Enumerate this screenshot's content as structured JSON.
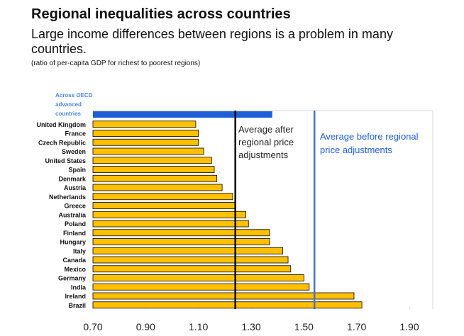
{
  "header": {
    "title": "Regional inequalities across countries",
    "subtitle": "Large income differences between regions is a problem in many countries.",
    "note": "(ratio of per-capita GDP for richest to poorest regions)"
  },
  "colors": {
    "bar_fill": "#ffc000",
    "bar_stroke": "#000000",
    "oecd_bar": "#1f5fd6",
    "oecd_label": "#4a86e8",
    "after_line": "#000000",
    "before_line": "#4472c4",
    "before_text": "#1f5fd6",
    "grid": "#d9d9d9"
  },
  "chart_data": {
    "type": "bar",
    "orientation": "horizontal",
    "xlim": [
      0.7,
      1.9
    ],
    "x_ticks": [
      "0.70",
      "0.90",
      "1.10",
      "1.30",
      "1.50",
      "1.70",
      "1.90"
    ],
    "tick_values": [
      0.7,
      0.9,
      1.1,
      1.3,
      1.5,
      1.7,
      1.9
    ],
    "grid": true,
    "oecd_label_lines": [
      "Across OECD",
      "advanced",
      "countries"
    ],
    "oecd_value": 1.38,
    "categories": [
      "United Kingdom",
      "France",
      "Czech Republic",
      "Sweden",
      "United States",
      "Spain",
      "Denmark",
      "Austria",
      "Netherlands",
      "Greece",
      "Australia",
      "Poland",
      "Finland",
      "Hungary",
      "Italy",
      "Canada",
      "Mexico",
      "Germany",
      "India",
      "Ireland",
      "Brazil"
    ],
    "values": [
      1.09,
      1.1,
      1.1,
      1.12,
      1.15,
      1.16,
      1.17,
      1.19,
      1.23,
      1.24,
      1.28,
      1.29,
      1.37,
      1.37,
      1.42,
      1.44,
      1.45,
      1.5,
      1.52,
      1.69,
      1.72
    ],
    "reference_lines": [
      {
        "value": 1.24,
        "label_lines": [
          "Average after",
          "regional price",
          "adjustments"
        ]
      },
      {
        "value": 1.54,
        "label_lines": [
          "Average before regional",
          " price adjustments"
        ]
      }
    ]
  }
}
